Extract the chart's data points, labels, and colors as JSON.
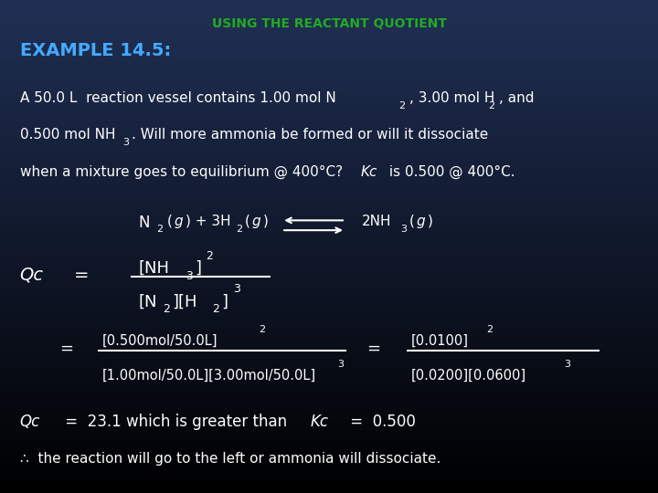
{
  "title": "USING THE REACTANT QUOTIENT",
  "title_color": "#22AA22",
  "example_label": "EXAMPLE 14.5:",
  "example_color": "#44AAFF",
  "text_color": "#FFFFFF",
  "body1a": "A 50.0 L  reaction vessel contains 1.00 mol N",
  "body1b": ", 3.00 mol H",
  "body1c": ", and",
  "body2a": "0.500 mol NH",
  "body2b": ". Will more ammonia be formed or will it dissociate",
  "body3a": "when a mixture goes to equilibrium @ 400°C? ",
  "body3b": "Kc",
  "body3c": " is 0.500 @ 400°C.",
  "conc1a": "Qc",
  "conc1b": " =  23.1 which is greater than ",
  "conc1c": "Kc",
  "conc1d": " =  0.500",
  "conc2": "∴  the reaction will go to the left or ammonia will dissociate."
}
